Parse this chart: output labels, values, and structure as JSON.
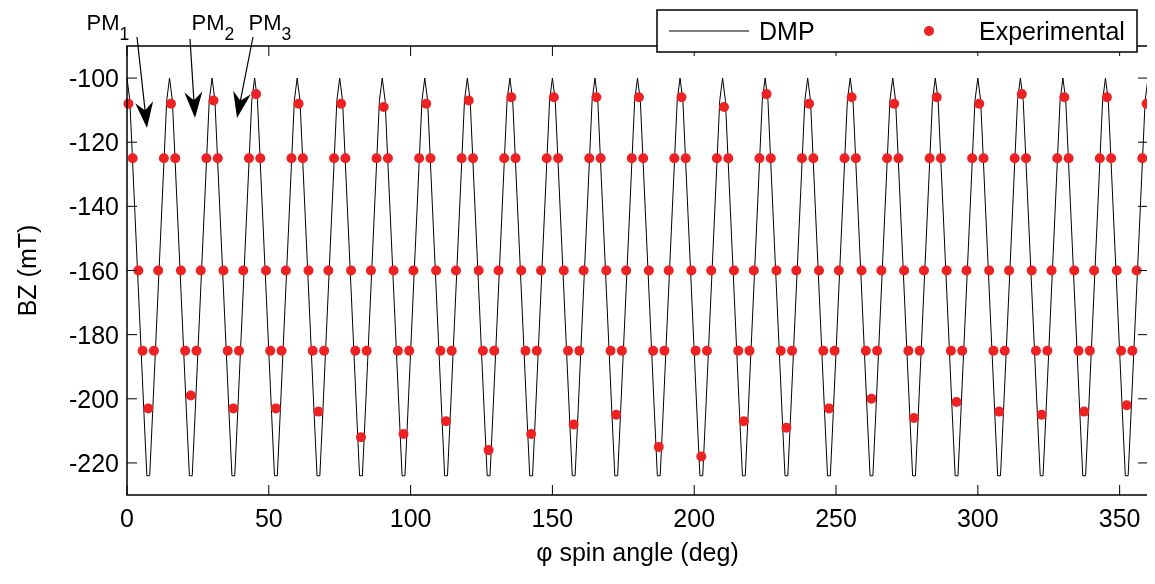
{
  "chart_data": {
    "type": "line",
    "xlabel": "φ spin angle (deg)",
    "ylabel": "BZ (mT)",
    "xlim": [
      0,
      360
    ],
    "ylim": [
      -230,
      -90
    ],
    "xticks": [
      0,
      50,
      100,
      150,
      200,
      250,
      300,
      350
    ],
    "yticks": [
      -220,
      -200,
      -180,
      -160,
      -140,
      -120,
      -100
    ],
    "legend": "top right",
    "annotations": [
      "PM$_{1}$",
      "PM$_{2}$",
      "PM$_{3}$"
    ],
    "series": [
      {
        "name": "DMP",
        "type": "line",
        "color": "#000000",
        "x": [
          0,
          1,
          6,
          7,
          8,
          9,
          14,
          15,
          16,
          21,
          22,
          23,
          24,
          29,
          30,
          31,
          36,
          37,
          38,
          39,
          44,
          45,
          46,
          51,
          52,
          53,
          54,
          59,
          60,
          61,
          66,
          67,
          68,
          69,
          74,
          75,
          76,
          81,
          82,
          83,
          84,
          89,
          90,
          91,
          96,
          97,
          98,
          99,
          104,
          105,
          106,
          111,
          112,
          113,
          114,
          119,
          120,
          121,
          126,
          127,
          128,
          129,
          134,
          135,
          136,
          141,
          142,
          143,
          144,
          149,
          150,
          151,
          156,
          157,
          158,
          159,
          164,
          165,
          166,
          171,
          172,
          173,
          174,
          179,
          180,
          181,
          186,
          187,
          188,
          189,
          194,
          195,
          196,
          201,
          202,
          203,
          204,
          209,
          210,
          211,
          216,
          217,
          218,
          219,
          224,
          225,
          226,
          231,
          232,
          233,
          234,
          239,
          240,
          241,
          246,
          247,
          248,
          249,
          254,
          255,
          256,
          261,
          262,
          263,
          264,
          269,
          270,
          271,
          276,
          277,
          278,
          279,
          284,
          285,
          286,
          291,
          292,
          293,
          294,
          299,
          300,
          301,
          306,
          307,
          308,
          309,
          314,
          315,
          316,
          321,
          322,
          323,
          324,
          329,
          330,
          331,
          336,
          337,
          338,
          339,
          344,
          345,
          346,
          351,
          352,
          353,
          354,
          359,
          360
        ],
        "values": [
          -100,
          -107,
          -205,
          -224,
          -224,
          -205,
          -107,
          -100,
          -107,
          -205,
          -224,
          -224,
          -205,
          -107,
          -100,
          -107,
          -205,
          -224,
          -224,
          -205,
          -107,
          -100,
          -107,
          -205,
          -224,
          -224,
          -205,
          -107,
          -100,
          -107,
          -205,
          -224,
          -224,
          -205,
          -107,
          -100,
          -107,
          -205,
          -224,
          -224,
          -205,
          -107,
          -100,
          -107,
          -205,
          -224,
          -224,
          -205,
          -107,
          -100,
          -107,
          -205,
          -224,
          -224,
          -205,
          -107,
          -100,
          -107,
          -205,
          -224,
          -224,
          -205,
          -107,
          -100,
          -107,
          -205,
          -224,
          -224,
          -205,
          -107,
          -100,
          -107,
          -205,
          -224,
          -224,
          -205,
          -107,
          -100,
          -107,
          -205,
          -224,
          -224,
          -205,
          -107,
          -100,
          -107,
          -205,
          -224,
          -224,
          -205,
          -107,
          -100,
          -107,
          -205,
          -224,
          -224,
          -205,
          -107,
          -100,
          -107,
          -205,
          -224,
          -224,
          -205,
          -107,
          -100,
          -107,
          -205,
          -224,
          -224,
          -205,
          -107,
          -100,
          -107,
          -205,
          -224,
          -224,
          -205,
          -107,
          -100,
          -107,
          -205,
          -224,
          -224,
          -205,
          -107,
          -100,
          -107,
          -205,
          -224,
          -224,
          -205,
          -107,
          -100,
          -107,
          -205,
          -224,
          -224,
          -205,
          -107,
          -100,
          -107,
          -205,
          -224,
          -224,
          -205,
          -107,
          -100,
          -107,
          -205,
          -224,
          -224,
          -205,
          -107,
          -100,
          -107,
          -205,
          -224,
          -224,
          -205,
          -107,
          -100,
          -107,
          -205,
          -224,
          -224,
          -205,
          -107,
          -100
        ]
      },
      {
        "name": "Experimental",
        "type": "scatter",
        "color": "#ee2222",
        "marker": "circle",
        "x": [
          0.5,
          2,
          4,
          5.5,
          7.5,
          9.5,
          11,
          13,
          15.5,
          17,
          19,
          20.5,
          22.5,
          24.5,
          26,
          28,
          30.5,
          32,
          34,
          35.5,
          37.5,
          39.5,
          41,
          43,
          45.5,
          47,
          49,
          50.5,
          52.5,
          54.5,
          56,
          58,
          60.5,
          62,
          64,
          65.5,
          67.5,
          69.5,
          71,
          73,
          75.5,
          77,
          79,
          80.5,
          82.5,
          84.5,
          86,
          88,
          90.5,
          92,
          94,
          95.5,
          97.5,
          99.5,
          101,
          103,
          105.5,
          107,
          109,
          110.5,
          112.5,
          114.5,
          116,
          118,
          120.5,
          122,
          124,
          125.5,
          127.5,
          129.5,
          131,
          133,
          135.5,
          137,
          139,
          140.5,
          142.5,
          144.5,
          146,
          148,
          150.5,
          152,
          154,
          155.5,
          157.5,
          159.5,
          161,
          163,
          165.5,
          167,
          169,
          170.5,
          172.5,
          174.5,
          176,
          178,
          180.5,
          182,
          184,
          185.5,
          187.5,
          189.5,
          191,
          193,
          195.5,
          197,
          199,
          200.5,
          202.5,
          204.5,
          206,
          208,
          210.5,
          212,
          214,
          215.5,
          217.5,
          219.5,
          221,
          223,
          225.5,
          227,
          229,
          230.5,
          232.5,
          234.5,
          236,
          238,
          240.5,
          242,
          244,
          245.5,
          247.5,
          249.5,
          251,
          253,
          255.5,
          257,
          259,
          260.5,
          262.5,
          264.5,
          266,
          268,
          270.5,
          272,
          274,
          275.5,
          277.5,
          279.5,
          281,
          283,
          285.5,
          287,
          289,
          290.5,
          292.5,
          294.5,
          296,
          298,
          300.5,
          302,
          304,
          305.5,
          307.5,
          309.5,
          311,
          313,
          315.5,
          317,
          319,
          320.5,
          322.5,
          324.5,
          326,
          328,
          330.5,
          332,
          334,
          335.5,
          337.5,
          339.5,
          341,
          343,
          345.5,
          347,
          349,
          350.5,
          352.5,
          354.5,
          356,
          358,
          359.5
        ],
        "values": [
          -108,
          -125,
          -160,
          -185,
          -203,
          -185,
          -160,
          -125,
          -108,
          -125,
          -160,
          -185,
          -199,
          -185,
          -160,
          -125,
          -107,
          -125,
          -160,
          -185,
          -203,
          -185,
          -160,
          -125,
          -105,
          -125,
          -160,
          -185,
          -203,
          -185,
          -160,
          -125,
          -108,
          -125,
          -160,
          -185,
          -204,
          -185,
          -160,
          -125,
          -108,
          -125,
          -160,
          -185,
          -212,
          -185,
          -160,
          -125,
          -109,
          -125,
          -160,
          -185,
          -211,
          -185,
          -160,
          -125,
          -108,
          -125,
          -160,
          -185,
          -207,
          -185,
          -160,
          -125,
          -107,
          -125,
          -160,
          -185,
          -216,
          -185,
          -160,
          -125,
          -106,
          -125,
          -160,
          -185,
          -211,
          -185,
          -160,
          -125,
          -106,
          -125,
          -160,
          -185,
          -208,
          -185,
          -160,
          -125,
          -106,
          -125,
          -160,
          -185,
          -205,
          -185,
          -160,
          -125,
          -106,
          -125,
          -160,
          -185,
          -215,
          -185,
          -160,
          -125,
          -106,
          -125,
          -160,
          -185,
          -218,
          -185,
          -160,
          -125,
          -109,
          -125,
          -160,
          -185,
          -207,
          -185,
          -160,
          -125,
          -105,
          -125,
          -160,
          -185,
          -209,
          -185,
          -160,
          -125,
          -108,
          -125,
          -160,
          -185,
          -203,
          -185,
          -160,
          -125,
          -106,
          -125,
          -160,
          -185,
          -200,
          -185,
          -160,
          -125,
          -108,
          -125,
          -160,
          -185,
          -206,
          -185,
          -160,
          -125,
          -106,
          -125,
          -160,
          -185,
          -201,
          -185,
          -160,
          -125,
          -108,
          -125,
          -160,
          -185,
          -204,
          -185,
          -160,
          -125,
          -105,
          -125,
          -160,
          -185,
          -205,
          -185,
          -160,
          -125,
          -106,
          -125,
          -160,
          -185,
          -204,
          -185,
          -160,
          -125,
          -106,
          -125,
          -160,
          -185,
          -202,
          -185,
          -160,
          -125,
          -108
        ]
      }
    ]
  }
}
